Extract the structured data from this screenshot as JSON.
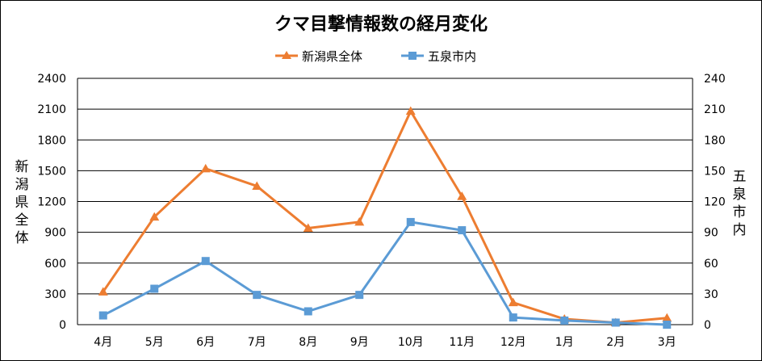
{
  "chart_data": {
    "type": "line",
    "title": "クマ目撃情報数の経月変化",
    "categories": [
      "4月",
      "5月",
      "6月",
      "7月",
      "8月",
      "9月",
      "10月",
      "11月",
      "12月",
      "1月",
      "2月",
      "3月"
    ],
    "ylabel_left": "新潟県全体",
    "ylabel_right": "五泉市内",
    "ylim_left": [
      0,
      2400
    ],
    "ylim_right": [
      0,
      240
    ],
    "yticks_left": [
      "0",
      "300",
      "600",
      "900",
      "1200",
      "1500",
      "1800",
      "2100",
      "2400"
    ],
    "yticks_right": [
      "0",
      "30",
      "60",
      "90",
      "120",
      "150",
      "180",
      "210",
      "240"
    ],
    "grid": true,
    "legend_position": "top",
    "series": [
      {
        "name": "新潟県全体",
        "axis": "left",
        "marker": "triangle",
        "color": "#ED7D31",
        "values": [
          320,
          1050,
          1520,
          1350,
          940,
          1000,
          2080,
          1250,
          215,
          55,
          20,
          65
        ]
      },
      {
        "name": "五泉市内",
        "axis": "right",
        "marker": "square",
        "color": "#5B9BD5",
        "values": [
          9,
          35,
          62,
          29,
          13,
          29,
          100,
          92,
          7,
          4,
          2,
          0
        ]
      }
    ]
  }
}
